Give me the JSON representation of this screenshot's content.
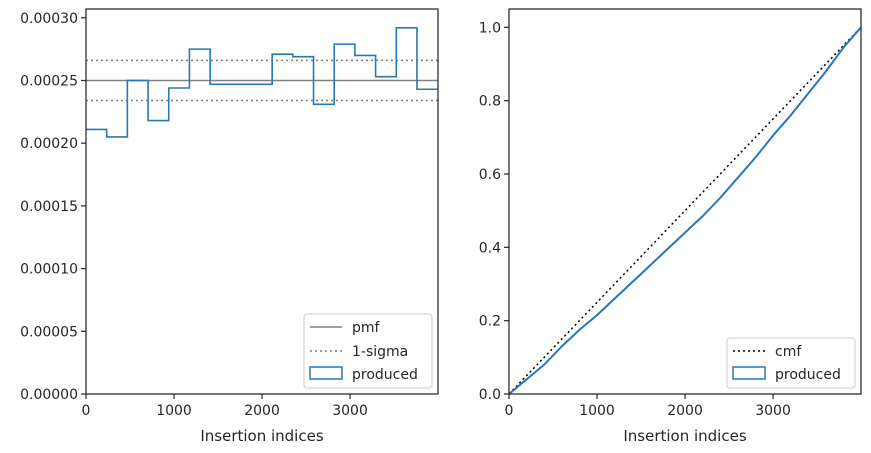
{
  "chart_data": [
    {
      "type": "line",
      "xlabel": "Insertion indices",
      "ylabel": "",
      "xlim": [
        0,
        3999
      ],
      "ylim": [
        0,
        0.000307
      ],
      "xticks": [
        0,
        1000,
        2000,
        3000
      ],
      "xtick_labels": [
        "0",
        "1000",
        "2000",
        "3000"
      ],
      "yticks": [
        0,
        5e-05,
        0.0001,
        0.00015,
        0.0002,
        0.00025,
        0.0003
      ],
      "ytick_labels": [
        "0.00000",
        "0.00005",
        "0.00010",
        "0.00015",
        "0.00020",
        "0.00025",
        "0.00030"
      ],
      "legend_position": "lower-right",
      "colors": {
        "pmf": "#808080",
        "sigma": "#808080",
        "produced": "#2878b5"
      },
      "series": [
        {
          "name": "pmf",
          "style": "solid",
          "y": 0.00025
        },
        {
          "name": "1-sigma",
          "style": "dotted",
          "y": [
            0.000234,
            0.000266
          ]
        },
        {
          "name": "produced",
          "style": "step-histogram",
          "bin_edges": [
            0,
            235,
            470,
            705,
            940,
            1175,
            1410,
            1645,
            1880,
            2115,
            2350,
            2585,
            2820,
            3055,
            3290,
            3525,
            3760,
            3999
          ],
          "values": [
            0.000211,
            0.000205,
            0.00025,
            0.000218,
            0.000244,
            0.000275,
            0.000247,
            0.000247,
            0.000247,
            0.000271,
            0.000269,
            0.000231,
            0.000279,
            0.00027,
            0.000253,
            0.000292,
            0.000243
          ]
        }
      ]
    },
    {
      "type": "line",
      "xlabel": "Insertion indices",
      "ylabel": "",
      "xlim": [
        0,
        3999
      ],
      "ylim": [
        0,
        1.05
      ],
      "xticks": [
        0,
        1000,
        2000,
        3000
      ],
      "xtick_labels": [
        "0",
        "1000",
        "2000",
        "3000"
      ],
      "yticks": [
        0,
        0.2,
        0.4,
        0.6,
        0.8,
        1.0
      ],
      "ytick_labels": [
        "0.0",
        "0.2",
        "0.4",
        "0.6",
        "0.8",
        "1.0"
      ],
      "legend_position": "lower-right",
      "colors": {
        "cmf": "#000000",
        "produced": "#2878b5"
      },
      "series": [
        {
          "name": "cmf",
          "style": "dotted",
          "x": [
            0,
            3999
          ],
          "y": [
            0,
            1.0
          ]
        },
        {
          "name": "produced",
          "style": "solid",
          "x": [
            0,
            200,
            400,
            600,
            800,
            1000,
            1200,
            1400,
            1600,
            1800,
            2000,
            2200,
            2400,
            2600,
            2800,
            3000,
            3200,
            3400,
            3600,
            3800,
            3999
          ],
          "y": [
            0,
            0.04,
            0.08,
            0.13,
            0.175,
            0.215,
            0.26,
            0.305,
            0.35,
            0.395,
            0.44,
            0.485,
            0.535,
            0.59,
            0.645,
            0.705,
            0.76,
            0.82,
            0.88,
            0.945,
            1.0
          ]
        }
      ]
    }
  ]
}
